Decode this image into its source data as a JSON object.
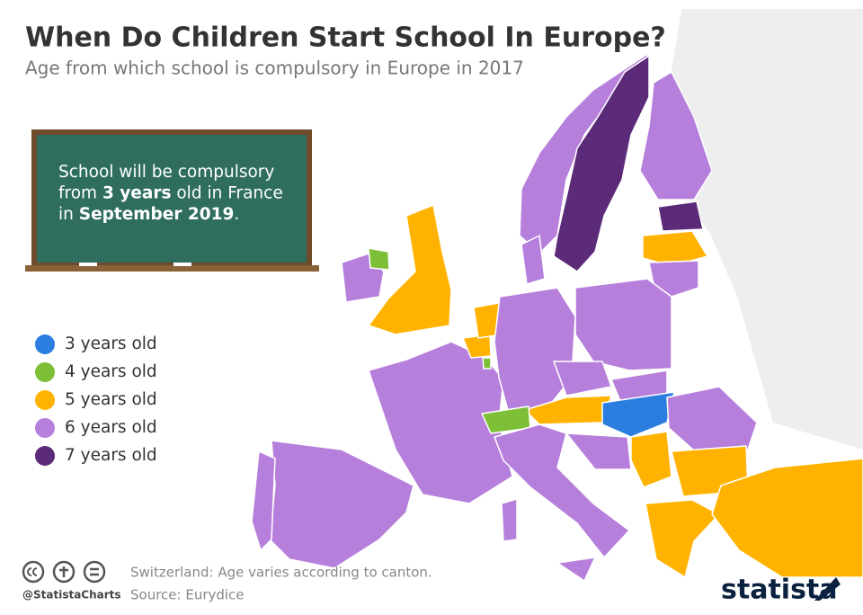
{
  "header": {
    "title": "When Do Children Start School In Europe?",
    "subtitle": "Age from which school is compulsory in Europe in 2017"
  },
  "board": {
    "lines": [
      [
        {
          "text": "School will be compulsory"
        }
      ],
      [
        {
          "text": "from "
        },
        {
          "text": "3 years",
          "bold": true
        },
        {
          "text": " old in France"
        }
      ],
      [
        {
          "text": "in "
        },
        {
          "text": "September 2019",
          "bold": true
        },
        {
          "text": "."
        }
      ]
    ]
  },
  "legend": [
    {
      "label": "3 years old",
      "color": "#2b7de0"
    },
    {
      "label": "4 years old",
      "color": "#7dbf37"
    },
    {
      "label": "5 years old",
      "color": "#ffb300"
    },
    {
      "label": "6 years old",
      "color": "#b67fdb"
    },
    {
      "label": "7 years old",
      "color": "#5b2a78"
    }
  ],
  "footer": {
    "note": "Switzerland: Age varies according to canton.",
    "source": "Source: Eurydice",
    "handle": "@StatistaCharts",
    "brand": "statista"
  }
}
